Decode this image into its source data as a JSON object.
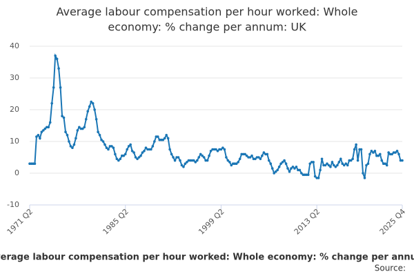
{
  "chart_data": {
    "type": "line",
    "title": [
      "Average labour compensation per hour worked: Whole",
      "economy: % change per annum: UK"
    ],
    "source": "Source:",
    "categories": [
      "1971 Q2",
      null,
      null,
      null,
      null,
      null,
      null,
      null,
      null,
      null,
      null,
      null,
      null,
      null,
      null,
      null,
      null,
      null,
      null,
      null,
      null,
      null,
      null,
      null,
      null,
      null,
      null,
      null,
      null,
      null,
      null,
      null,
      null,
      null,
      null,
      null,
      null,
      null,
      null,
      null,
      null,
      null,
      null,
      null,
      null,
      null,
      null,
      null,
      null,
      null,
      null,
      null,
      null,
      null,
      null,
      null,
      "1985 Q2",
      null,
      null,
      null,
      null,
      null,
      null,
      null,
      null,
      null,
      null,
      null,
      null,
      null,
      null,
      null,
      null,
      null,
      null,
      null,
      null,
      null,
      null,
      null,
      null,
      null,
      null,
      null,
      null,
      null,
      null,
      null,
      null,
      null,
      null,
      null,
      null,
      null,
      null,
      null,
      null,
      null,
      null,
      null,
      null,
      null,
      null,
      null,
      null,
      null,
      null,
      null,
      null,
      null,
      null,
      null,
      "1999 Q2",
      null,
      null,
      null,
      null,
      null,
      null,
      null,
      null,
      null,
      null,
      null,
      null,
      null,
      null,
      null,
      null,
      null,
      null,
      null,
      null,
      null,
      null,
      null,
      null,
      null,
      null,
      null,
      null,
      null,
      null,
      null,
      null,
      null,
      null,
      null,
      null,
      null,
      null,
      null,
      null,
      null,
      null,
      null,
      null,
      null,
      null,
      null,
      null,
      null,
      null,
      null,
      null,
      null,
      null,
      null,
      "2013 Q2",
      null,
      null,
      null,
      null,
      null,
      null,
      null,
      null,
      null,
      null,
      null,
      null,
      null,
      null,
      null,
      null,
      null,
      null,
      null,
      null,
      null,
      null,
      null,
      null,
      null,
      null,
      null,
      null,
      null,
      null,
      null,
      null,
      null,
      null,
      null,
      null,
      null,
      null,
      null,
      null,
      null,
      null,
      null,
      null,
      null,
      null,
      null,
      null,
      null,
      "2025 Q4"
    ],
    "series": [
      {
        "name": "Average labour compensation per hour worked: Whole economy: % change per annum",
        "color": "#1a76b5",
        "values": [
          3,
          3,
          3,
          3,
          11.5,
          12,
          11,
          13,
          13.5,
          14,
          14.5,
          14.5,
          16,
          22,
          27,
          37,
          36,
          33,
          27,
          18,
          17.5,
          13,
          12,
          10,
          8.5,
          8,
          9,
          11,
          13.5,
          14.5,
          14,
          14,
          14.5,
          17,
          19.5,
          21,
          22.5,
          22,
          20,
          17,
          13,
          12,
          10.5,
          10,
          9,
          8,
          7.5,
          8.5,
          8.5,
          8,
          6,
          4.5,
          4,
          4.5,
          5.5,
          5.5,
          6,
          7.5,
          8.5,
          9,
          7,
          6.5,
          5,
          4.5,
          5,
          5.5,
          6.5,
          7,
          8,
          7.5,
          7.5,
          7.5,
          8.5,
          10,
          11.5,
          11.5,
          10.5,
          10.5,
          10.5,
          11,
          12,
          11,
          7.5,
          6,
          5,
          4,
          5,
          5,
          4,
          2.5,
          2,
          3,
          3.5,
          4,
          4,
          4,
          4,
          3.5,
          4,
          5,
          6,
          5.5,
          5,
          4,
          4,
          5.5,
          7,
          7.5,
          7.5,
          7.5,
          7,
          7.5,
          7.5,
          8,
          7.5,
          5,
          4,
          3.5,
          2.5,
          3,
          3,
          3,
          3.5,
          4.5,
          6,
          6,
          6,
          5.5,
          5,
          5,
          5.5,
          4.5,
          4.5,
          5,
          5,
          4.5,
          5.5,
          6.5,
          6,
          6,
          4,
          3,
          1.5,
          0,
          0.5,
          1,
          2,
          3,
          3.5,
          4,
          3,
          1.5,
          0.5,
          1.5,
          2,
          1.5,
          2,
          1,
          1,
          0,
          -0.5,
          -0.5,
          -0.5,
          -0.5,
          3,
          3.5,
          3.5,
          -1,
          -1.5,
          -1.5,
          1,
          4.5,
          2.5,
          2.5,
          3,
          2.5,
          2,
          3.5,
          2.5,
          2,
          2.5,
          3.5,
          4.5,
          3,
          2.5,
          3,
          2.5,
          4,
          4,
          4.5,
          7.5,
          9,
          4,
          7.5,
          7.5,
          0,
          -1.5,
          2.5,
          3,
          6,
          7,
          6.5,
          7,
          5.5,
          5.5,
          6,
          4,
          3,
          3,
          2.5,
          6.5,
          6,
          6,
          6.5,
          6.5,
          7,
          6,
          4,
          4
        ]
      }
    ],
    "ylim": [
      -10,
      40
    ],
    "yticks": [
      -10,
      0,
      10,
      20,
      30,
      40
    ],
    "grid": true
  }
}
